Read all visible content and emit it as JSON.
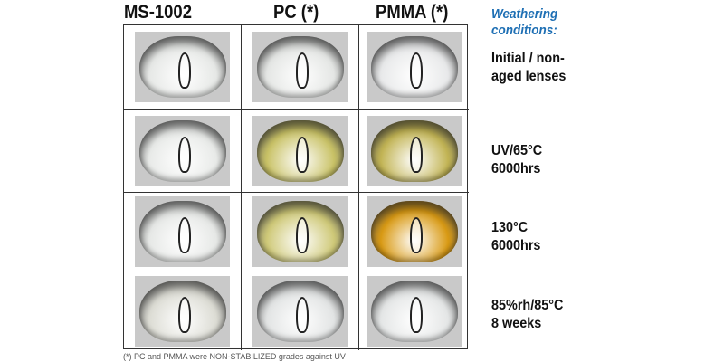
{
  "columns": [
    "MS-1002",
    "PC (*)",
    "PMMA (*)"
  ],
  "weathering_title": "Weathering conditions:",
  "conditions": [
    {
      "line1": "Initial / non-",
      "line2": "aged lenses"
    },
    {
      "line1": "UV/65°C",
      "line2": "6000hrs"
    },
    {
      "line1": "130°C",
      "line2": "6000hrs"
    },
    {
      "line1": "85%rh/85°C",
      "line2": "8 weeks"
    }
  ],
  "lens_colors": [
    [
      "#e6e8e6",
      "#e4e6e4",
      "#e8e9ea"
    ],
    [
      "#e8eae8",
      "#c9c266",
      "#c2b454"
    ],
    [
      "#e6e8e6",
      "#cfc978",
      "#d99a14"
    ],
    [
      "#dcdcd4",
      "#e2e4e4",
      "#e4e6e6"
    ]
  ],
  "footnote": "(*) PC and PMMA were NON-STABILIZED grades against UV"
}
